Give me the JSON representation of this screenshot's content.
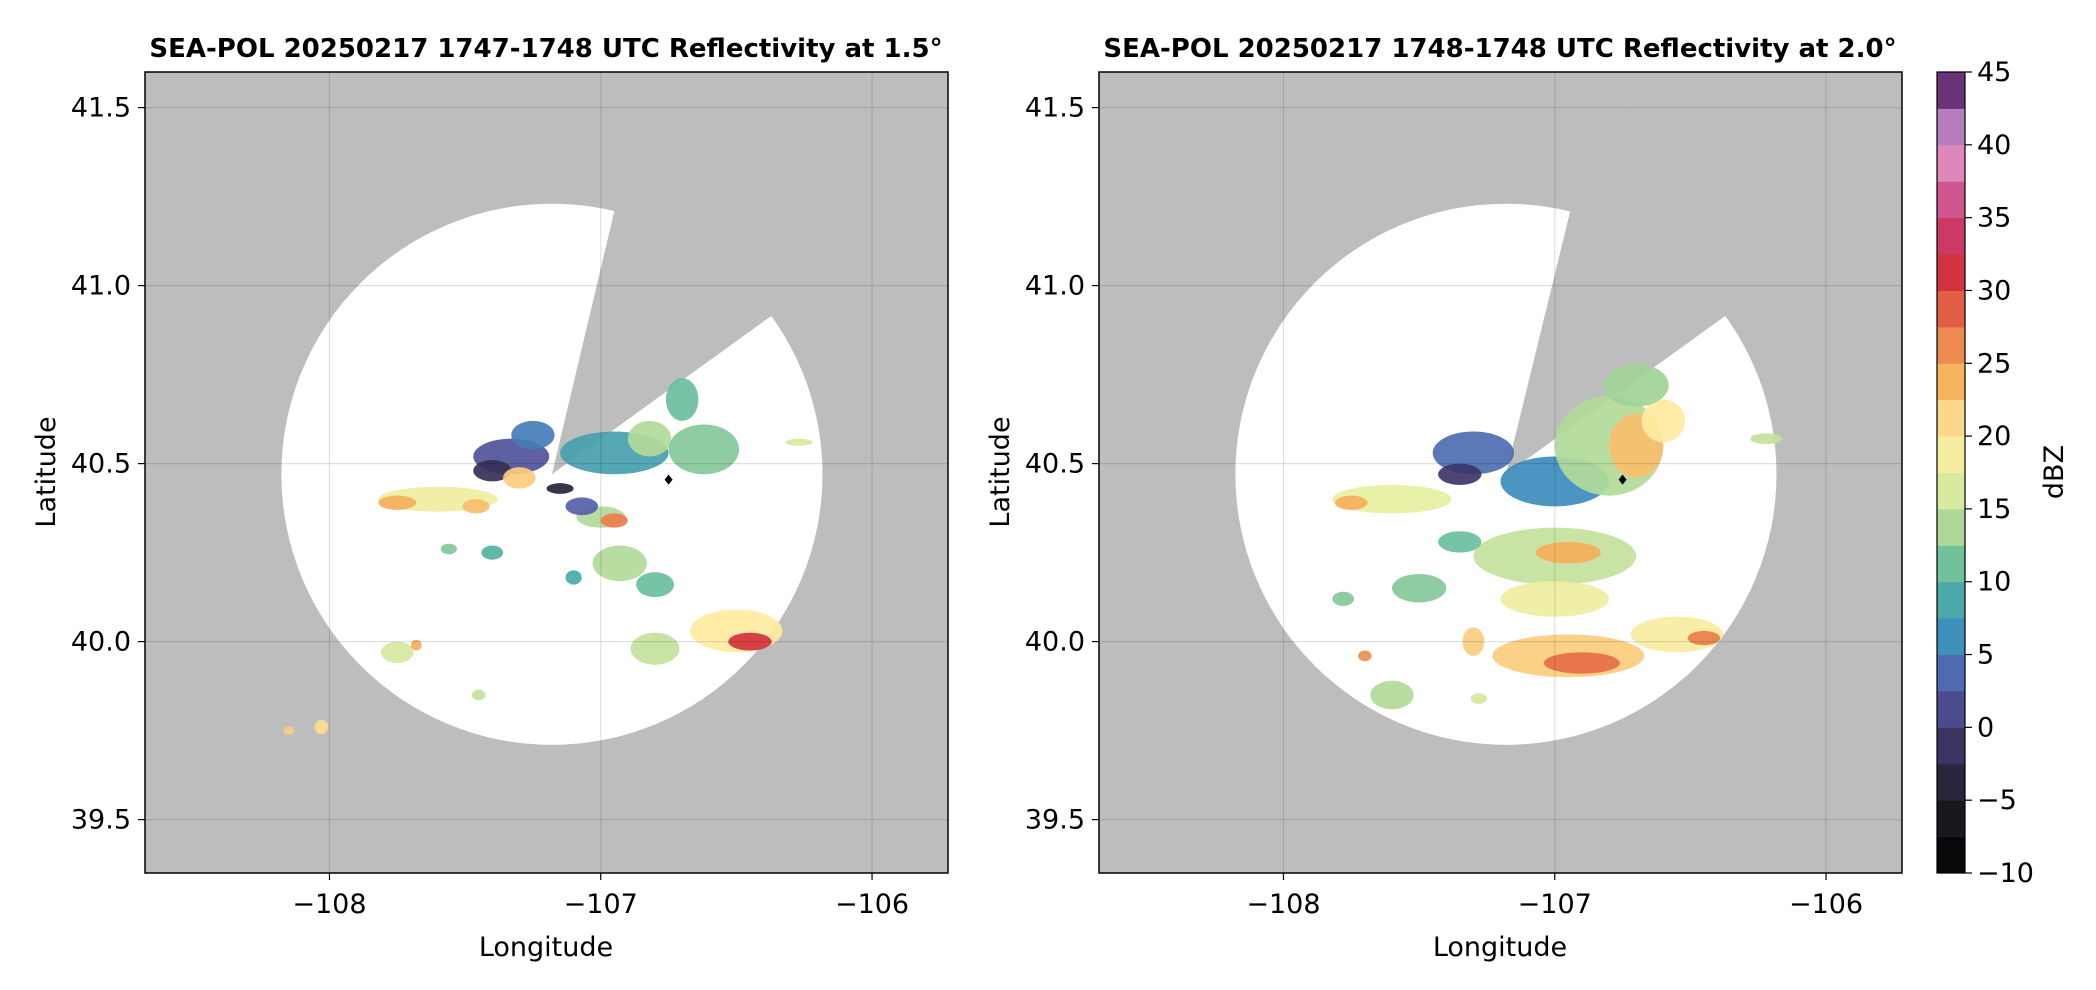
{
  "chart_data": [
    {
      "type": "heatmap",
      "title": "SEA-POL 20250217 1747-1748 UTC Reflectivity at 1.5°",
      "xlabel": "Longitude",
      "ylabel": "Latitude",
      "xlim": [
        -108.68,
        -105.72
      ],
      "ylim": [
        39.35,
        41.6
      ],
      "xticks": [
        -108,
        -107,
        -106
      ],
      "xtick_labels": [
        "−108",
        "−107",
        "−106"
      ],
      "yticks": [
        39.5,
        40.0,
        40.5,
        41.0,
        41.5
      ],
      "ytick_labels": [
        "39.5",
        "40.0",
        "40.5",
        "41.0",
        "41.5"
      ],
      "grid": true,
      "radar_center": [
        -107.18,
        40.47
      ],
      "blocked_sector_rays": [
        [
          -106.85,
          41.53
        ],
        [
          -106.05,
          41.12
        ]
      ],
      "marker": [
        -106.75,
        40.455
      ],
      "echoes": [
        {
          "lon": -107.33,
          "lat": 40.52,
          "dbz": 2,
          "rx": 0.14,
          "ry": 0.05
        },
        {
          "lon": -107.4,
          "lat": 40.48,
          "dbz": -2,
          "rx": 0.07,
          "ry": 0.03
        },
        {
          "lon": -107.25,
          "lat": 40.58,
          "dbz": 5,
          "rx": 0.08,
          "ry": 0.04
        },
        {
          "lon": -107.3,
          "lat": 40.46,
          "dbz": 22,
          "rx": 0.06,
          "ry": 0.03
        },
        {
          "lon": -107.15,
          "lat": 40.43,
          "dbz": -4,
          "rx": 0.05,
          "ry": 0.015
        },
        {
          "lon": -107.6,
          "lat": 40.4,
          "dbz": 18,
          "rx": 0.22,
          "ry": 0.035
        },
        {
          "lon": -107.75,
          "lat": 40.39,
          "dbz": 24,
          "rx": 0.07,
          "ry": 0.02
        },
        {
          "lon": -107.46,
          "lat": 40.38,
          "dbz": 23,
          "rx": 0.05,
          "ry": 0.02
        },
        {
          "lon": -106.95,
          "lat": 40.53,
          "dbz": 8,
          "rx": 0.2,
          "ry": 0.06
        },
        {
          "lon": -106.82,
          "lat": 40.57,
          "dbz": 14,
          "rx": 0.08,
          "ry": 0.05
        },
        {
          "lon": -106.62,
          "lat": 40.54,
          "dbz": 12,
          "rx": 0.13,
          "ry": 0.07
        },
        {
          "lon": -106.7,
          "lat": 40.68,
          "dbz": 11,
          "rx": 0.06,
          "ry": 0.06
        },
        {
          "lon": -107.0,
          "lat": 40.35,
          "dbz": 14,
          "rx": 0.09,
          "ry": 0.03
        },
        {
          "lon": -106.95,
          "lat": 40.34,
          "dbz": 27,
          "rx": 0.05,
          "ry": 0.02
        },
        {
          "lon": -107.07,
          "lat": 40.38,
          "dbz": 3,
          "rx": 0.06,
          "ry": 0.025
        },
        {
          "lon": -106.93,
          "lat": 40.22,
          "dbz": 14,
          "rx": 0.1,
          "ry": 0.05
        },
        {
          "lon": -106.8,
          "lat": 40.16,
          "dbz": 11,
          "rx": 0.07,
          "ry": 0.035
        },
        {
          "lon": -106.5,
          "lat": 40.03,
          "dbz": 20,
          "rx": 0.17,
          "ry": 0.06
        },
        {
          "lon": -106.45,
          "lat": 40.0,
          "dbz": 31,
          "rx": 0.08,
          "ry": 0.025
        },
        {
          "lon": -106.8,
          "lat": 39.98,
          "dbz": 15,
          "rx": 0.09,
          "ry": 0.045
        },
        {
          "lon": -107.4,
          "lat": 40.25,
          "dbz": 10,
          "rx": 0.04,
          "ry": 0.02
        },
        {
          "lon": -107.75,
          "lat": 39.97,
          "dbz": 16,
          "rx": 0.06,
          "ry": 0.03
        },
        {
          "lon": -107.68,
          "lat": 39.99,
          "dbz": 24,
          "rx": 0.02,
          "ry": 0.015
        },
        {
          "lon": -108.15,
          "lat": 39.75,
          "dbz": 22,
          "rx": 0.02,
          "ry": 0.012
        },
        {
          "lon": -108.03,
          "lat": 39.76,
          "dbz": 21,
          "rx": 0.025,
          "ry": 0.02
        },
        {
          "lon": -106.27,
          "lat": 40.56,
          "dbz": 16,
          "rx": 0.05,
          "ry": 0.01
        },
        {
          "lon": -107.56,
          "lat": 40.26,
          "dbz": 12,
          "rx": 0.03,
          "ry": 0.015
        },
        {
          "lon": -107.45,
          "lat": 39.85,
          "dbz": 15,
          "rx": 0.025,
          "ry": 0.015
        },
        {
          "lon": -107.1,
          "lat": 40.18,
          "dbz": 9,
          "rx": 0.03,
          "ry": 0.02
        }
      ]
    },
    {
      "type": "heatmap",
      "title": "SEA-POL 20250217 1748-1748 UTC Reflectivity at 2.0°",
      "xlabel": "Longitude",
      "ylabel": "Latitude",
      "xlim": [
        -108.68,
        -105.72
      ],
      "ylim": [
        39.35,
        41.6
      ],
      "xticks": [
        -108,
        -107,
        -106
      ],
      "xtick_labels": [
        "−108",
        "−107",
        "−106"
      ],
      "yticks": [
        39.5,
        40.0,
        40.5,
        41.0,
        41.5
      ],
      "ytick_labels": [
        "39.5",
        "40.0",
        "40.5",
        "41.0",
        "41.5"
      ],
      "grid": true,
      "radar_center": [
        -107.18,
        40.47
      ],
      "blocked_sector_rays": [
        [
          -106.84,
          41.53
        ],
        [
          -106.05,
          41.12
        ]
      ],
      "marker": [
        -106.75,
        40.455
      ],
      "echoes": [
        {
          "lon": -107.3,
          "lat": 40.53,
          "dbz": 4,
          "rx": 0.15,
          "ry": 0.06
        },
        {
          "lon": -107.35,
          "lat": 40.47,
          "dbz": -1,
          "rx": 0.08,
          "ry": 0.03
        },
        {
          "lon": -107.0,
          "lat": 40.45,
          "dbz": 6,
          "rx": 0.2,
          "ry": 0.07
        },
        {
          "lon": -106.8,
          "lat": 40.55,
          "dbz": 14,
          "rx": 0.2,
          "ry": 0.14
        },
        {
          "lon": -106.7,
          "lat": 40.55,
          "dbz": 23,
          "rx": 0.1,
          "ry": 0.09
        },
        {
          "lon": -106.6,
          "lat": 40.62,
          "dbz": 20,
          "rx": 0.08,
          "ry": 0.06
        },
        {
          "lon": -106.7,
          "lat": 40.72,
          "dbz": 13,
          "rx": 0.12,
          "ry": 0.06
        },
        {
          "lon": -107.6,
          "lat": 40.4,
          "dbz": 17,
          "rx": 0.22,
          "ry": 0.04
        },
        {
          "lon": -107.75,
          "lat": 40.39,
          "dbz": 24,
          "rx": 0.06,
          "ry": 0.02
        },
        {
          "lon": -107.0,
          "lat": 40.24,
          "dbz": 15,
          "rx": 0.3,
          "ry": 0.08
        },
        {
          "lon": -106.95,
          "lat": 40.25,
          "dbz": 24,
          "rx": 0.12,
          "ry": 0.03
        },
        {
          "lon": -107.0,
          "lat": 40.12,
          "dbz": 18,
          "rx": 0.2,
          "ry": 0.05
        },
        {
          "lon": -106.95,
          "lat": 39.96,
          "dbz": 22,
          "rx": 0.28,
          "ry": 0.06
        },
        {
          "lon": -106.9,
          "lat": 39.94,
          "dbz": 28,
          "rx": 0.14,
          "ry": 0.03
        },
        {
          "lon": -106.55,
          "lat": 40.02,
          "dbz": 19,
          "rx": 0.17,
          "ry": 0.05
        },
        {
          "lon": -106.45,
          "lat": 40.01,
          "dbz": 27,
          "rx": 0.06,
          "ry": 0.02
        },
        {
          "lon": -107.3,
          "lat": 40.0,
          "dbz": 22,
          "rx": 0.04,
          "ry": 0.04
        },
        {
          "lon": -107.5,
          "lat": 40.15,
          "dbz": 12,
          "rx": 0.1,
          "ry": 0.04
        },
        {
          "lon": -107.35,
          "lat": 40.28,
          "dbz": 11,
          "rx": 0.08,
          "ry": 0.03
        },
        {
          "lon": -107.6,
          "lat": 39.85,
          "dbz": 14,
          "rx": 0.08,
          "ry": 0.04
        },
        {
          "lon": -107.7,
          "lat": 39.96,
          "dbz": 26,
          "rx": 0.025,
          "ry": 0.015
        },
        {
          "lon": -107.28,
          "lat": 39.84,
          "dbz": 16,
          "rx": 0.03,
          "ry": 0.015
        },
        {
          "lon": -106.22,
          "lat": 40.57,
          "dbz": 15,
          "rx": 0.06,
          "ry": 0.015
        },
        {
          "lon": -107.78,
          "lat": 40.12,
          "dbz": 12,
          "rx": 0.04,
          "ry": 0.02
        }
      ]
    }
  ],
  "colorbar": {
    "label": "dBZ",
    "min": -10,
    "max": 45,
    "ticks": [
      -10,
      -5,
      0,
      5,
      10,
      15,
      20,
      25,
      30,
      35,
      40,
      45
    ],
    "tick_labels": [
      "−10",
      "−5",
      "0",
      "5",
      "10",
      "15",
      "20",
      "25",
      "30",
      "35",
      "40",
      "45"
    ],
    "step": 2.5
  },
  "colors": {
    "masked": "#bdbdbd",
    "range_circle": "#ffffff",
    "grid": "#c8c8c8",
    "marker": "#000000"
  }
}
